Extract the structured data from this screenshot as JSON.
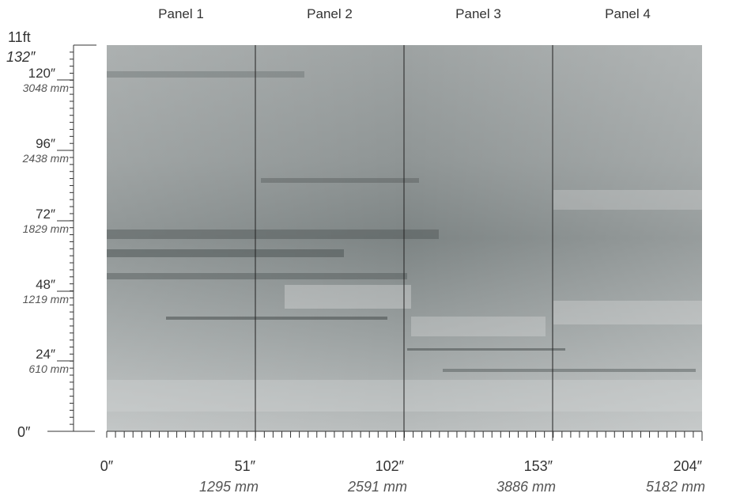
{
  "panels": [
    "Panel 1",
    "Panel 2",
    "Panel 3",
    "Panel 4"
  ],
  "height_ruler": {
    "top_feet": "11ft",
    "top_inches": "132″",
    "marks": [
      {
        "inches": "120″",
        "mm": "3048 mm"
      },
      {
        "inches": "96″",
        "mm": "2438 mm"
      },
      {
        "inches": "72″",
        "mm": "1829 mm"
      },
      {
        "inches": "48″",
        "mm": "1219 mm"
      },
      {
        "inches": "24″",
        "mm": "610 mm"
      }
    ],
    "zero": "0″"
  },
  "width_ruler": {
    "zero": "0″",
    "marks": [
      {
        "inches": "51″",
        "mm": "1295 mm"
      },
      {
        "inches": "102″",
        "mm": "2591 mm"
      },
      {
        "inches": "153″",
        "mm": "3886 mm"
      },
      {
        "inches": "204″",
        "mm": "5182 mm"
      }
    ]
  }
}
